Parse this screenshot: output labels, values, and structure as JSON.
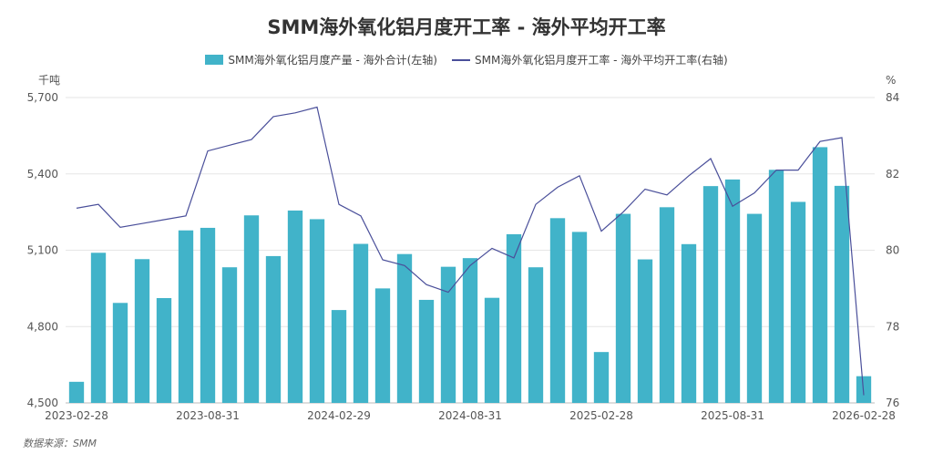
{
  "chart_data": {
    "type": "bar",
    "title": "SMM海外氧化铝月度开工率 - 海外平均开工率",
    "series": [
      {
        "name": "SMM海外氧化铝月度产量 - 海外合计(左轴)",
        "type": "bar",
        "axis": "left",
        "color": "#41b3c9",
        "values": [
          4583,
          5090,
          4893,
          5065,
          4912,
          5178,
          5188,
          5033,
          5237,
          5077,
          5256,
          5222,
          4865,
          5125,
          4950,
          5085,
          4905,
          5035,
          5069,
          4913,
          5163,
          5033,
          5226,
          5172,
          4700,
          5243,
          5064,
          5269,
          5124,
          5352,
          5378,
          5243,
          5416,
          5290,
          5505,
          5353,
          4605
        ]
      },
      {
        "name": "SMM海外氧化铝月度开工率 - 海外平均开工率(右轴)",
        "type": "line",
        "axis": "right",
        "color": "#4a4f9a",
        "values": [
          81.1,
          81.2,
          80.6,
          80.7,
          80.8,
          80.9,
          82.6,
          82.75,
          82.9,
          83.5,
          83.6,
          83.75,
          81.2,
          80.9,
          79.75,
          79.6,
          79.1,
          78.9,
          79.6,
          80.05,
          79.8,
          81.2,
          81.65,
          81.95,
          80.5,
          81.0,
          81.6,
          81.45,
          81.95,
          82.4,
          81.15,
          81.5,
          82.1,
          82.1,
          82.85,
          82.95,
          76.2
        ]
      }
    ],
    "x_tick_labels": [
      "2023-02-28",
      "2023-08-31",
      "2024-02-29",
      "2024-08-31",
      "2025-02-28",
      "2025-08-31",
      "2026-02-28"
    ],
    "y_left": {
      "unit": "千吨",
      "ticks": [
        "4,500",
        "4,800",
        "5,100",
        "5,400",
        "5,700"
      ],
      "min": 4500,
      "max": 5700
    },
    "y_right": {
      "unit": "%",
      "ticks": [
        "76",
        "78",
        "80",
        "82",
        "84"
      ],
      "min": 76,
      "max": 84
    },
    "grid": true,
    "legend_position": "top"
  },
  "source": "数据来源：SMM"
}
